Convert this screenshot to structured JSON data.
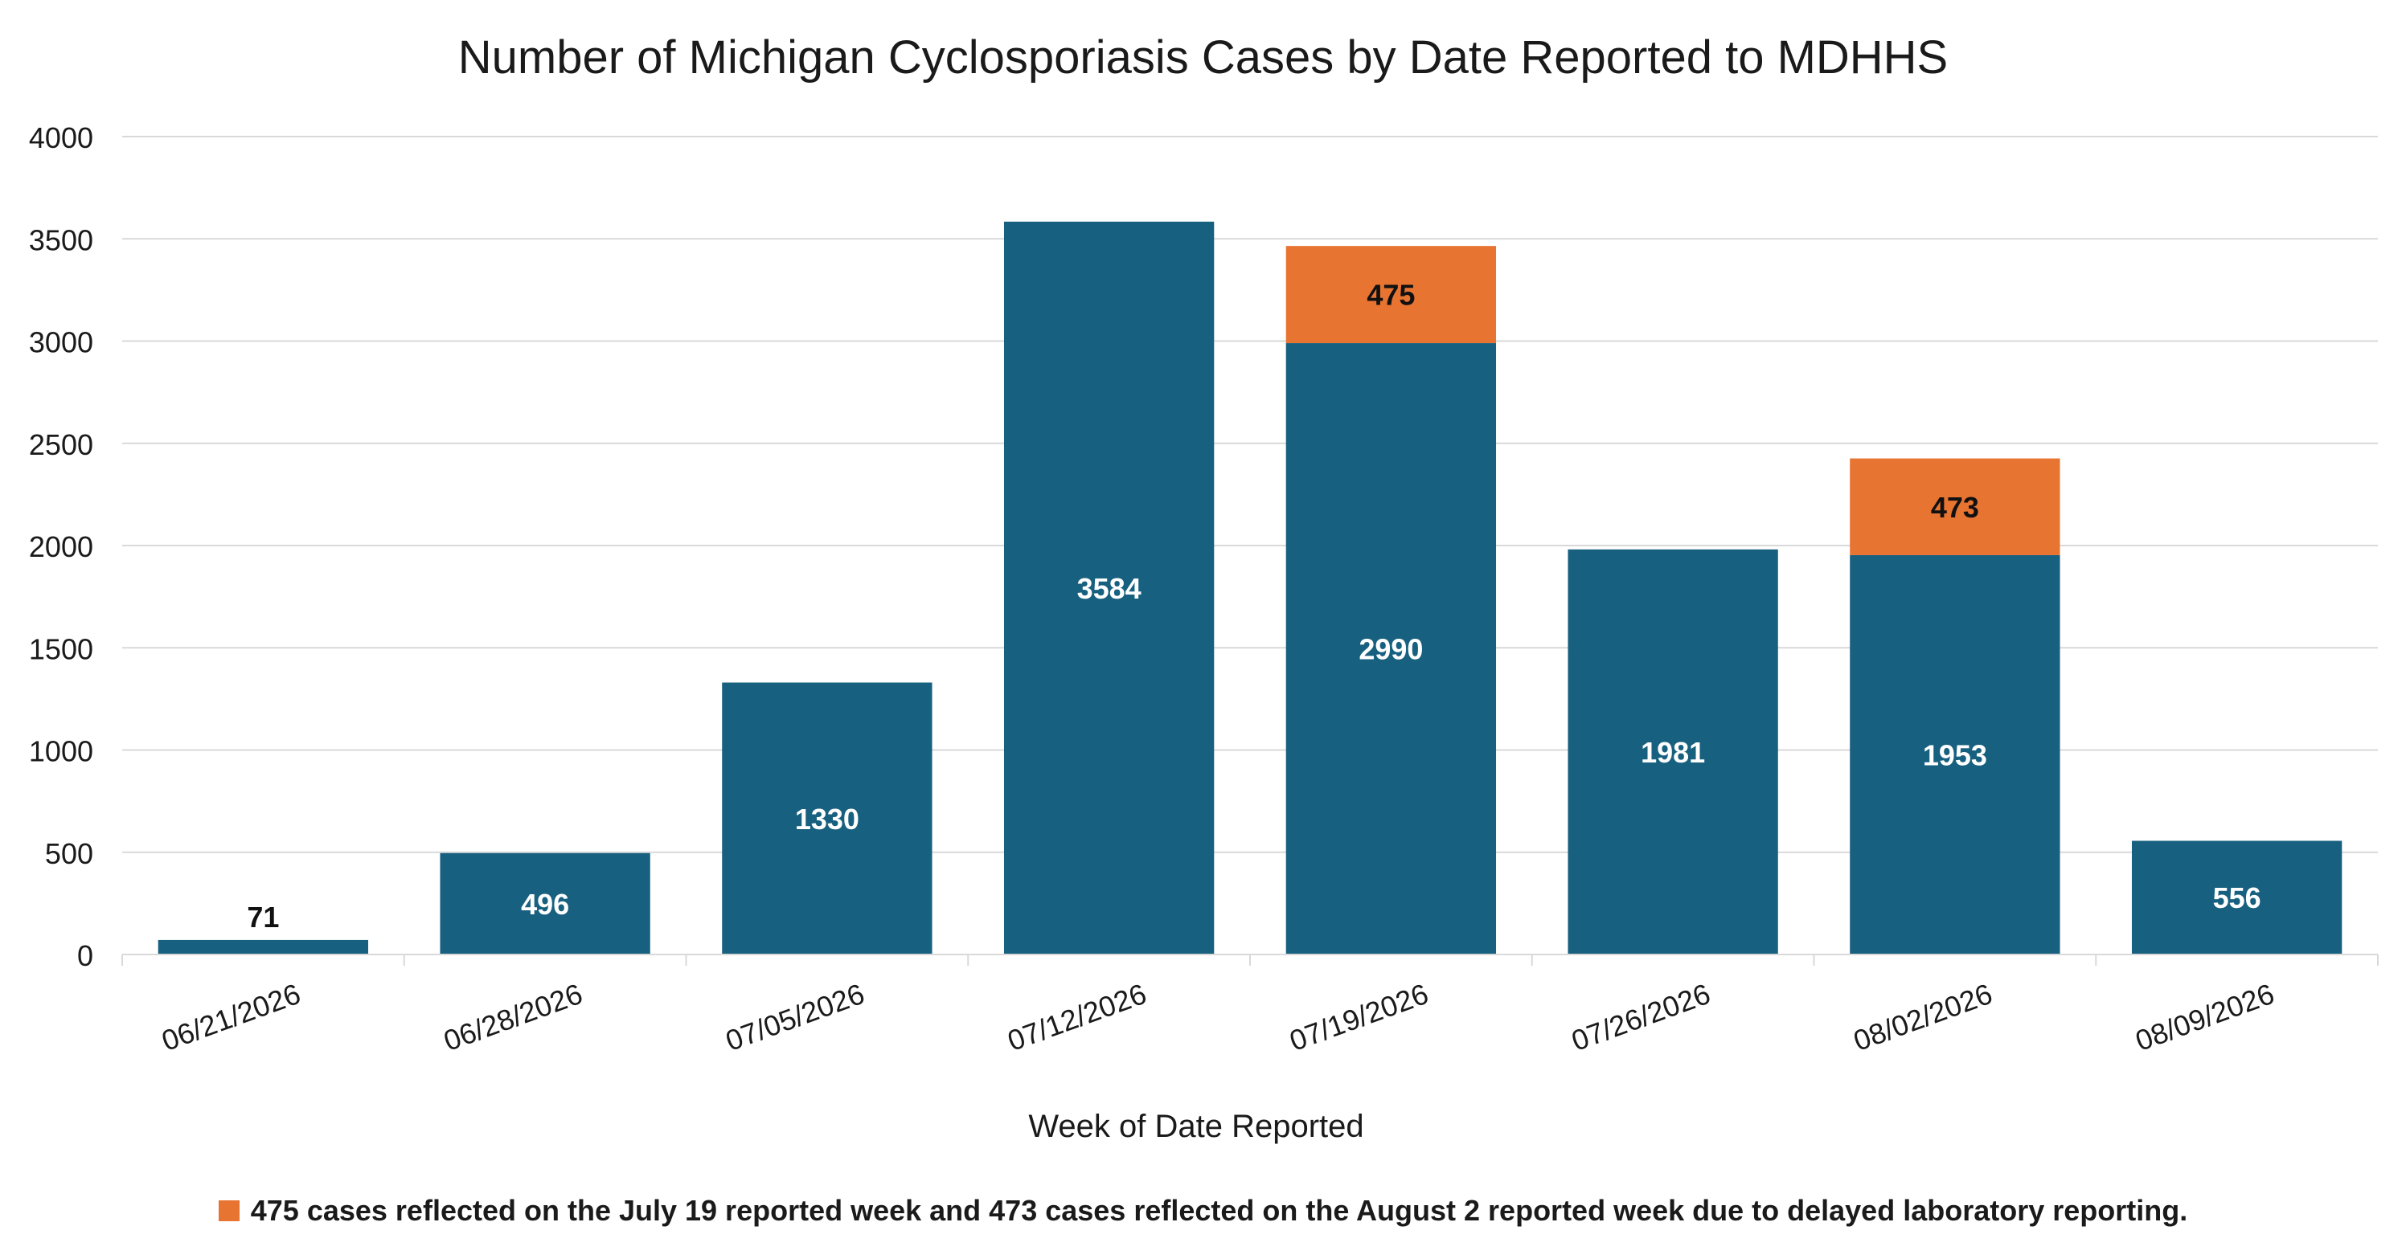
{
  "chart_data": {
    "type": "bar",
    "title": "Number of Michigan Cyclosporiasis Cases by Date Reported to MDHHS",
    "xlabel": "Week of Date Reported",
    "ylabel": "",
    "ylim": [
      0,
      4000
    ],
    "yticks": [
      0,
      500,
      1000,
      1500,
      2000,
      2500,
      3000,
      3500,
      4000
    ],
    "grid": true,
    "stacked": true,
    "categories": [
      "06/21/2026",
      "06/28/2026",
      "07/05/2026",
      "07/12/2026",
      "07/19/2026",
      "07/26/2026",
      "08/02/2026",
      "08/09/2026"
    ],
    "series": [
      {
        "values": [
          71,
          496,
          1330,
          3584,
          2990,
          1981,
          1953,
          556
        ],
        "color": "#17607f"
      },
      {
        "values": [
          0,
          0,
          0,
          0,
          475,
          0,
          473,
          0
        ],
        "color": "#e87432"
      }
    ],
    "legend": {
      "position": "bottom",
      "entries": [
        {
          "label": "475 cases reflected on the July 19 reported week and 473 cases reflected on the August 2 reported week due to delayed laboratory reporting.",
          "color": "#e87432"
        }
      ]
    }
  }
}
